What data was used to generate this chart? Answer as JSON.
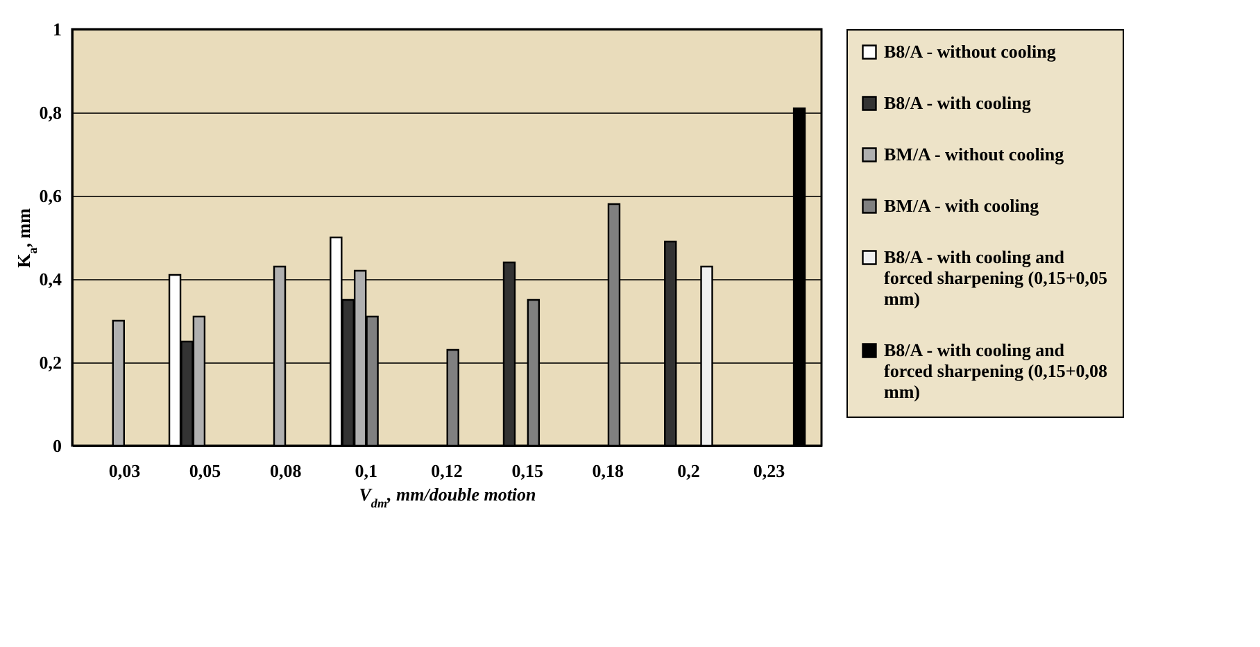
{
  "chart_data": {
    "type": "bar",
    "xlabel": "V$_{dm}$, mm/double motion",
    "ylabel": "K$_{a}$, mm",
    "categories": [
      "0,03",
      "0,05",
      "0,08",
      "0,1",
      "0,12",
      "0,15",
      "0,18",
      "0,2",
      "0,23"
    ],
    "series": [
      {
        "name": "B8/A - without cooling",
        "color": "#ffffff",
        "values": [
          null,
          0.41,
          null,
          0.5,
          null,
          null,
          null,
          null,
          null
        ]
      },
      {
        "name": "B8/A - with cooling",
        "color": "#333333",
        "values": [
          null,
          0.25,
          null,
          0.35,
          null,
          0.44,
          null,
          0.49,
          null
        ]
      },
      {
        "name": "BM/A - without cooling",
        "color": "#b0b0b0",
        "values": [
          0.3,
          0.31,
          0.43,
          0.42,
          null,
          null,
          null,
          null,
          null
        ]
      },
      {
        "name": "BM/A - with cooling",
        "color": "#808080",
        "values": [
          null,
          null,
          null,
          0.31,
          0.23,
          0.35,
          0.58,
          null,
          null
        ]
      },
      {
        "name": "B8/A - with cooling and forced sharpening (0,15+0,05 mm)",
        "color": "#f0f0f0",
        "values": [
          null,
          null,
          null,
          null,
          null,
          null,
          null,
          0.43,
          null
        ]
      },
      {
        "name": "B8/A - with cooling and forced sharpening (0,15+0,08 mm)",
        "color": "#000000",
        "values": [
          null,
          null,
          null,
          null,
          null,
          null,
          null,
          null,
          0.81
        ]
      }
    ],
    "ylim": [
      0,
      1
    ],
    "yticks": [
      0,
      {
        "value": 0.2,
        "label": "0,2"
      },
      {
        "value": 0.4,
        "label": "0,4"
      },
      {
        "value": 0.6,
        "label": "0,6"
      },
      {
        "value": 0.8,
        "label": "0,8"
      },
      1
    ],
    "grid": "y",
    "legend": "right"
  }
}
